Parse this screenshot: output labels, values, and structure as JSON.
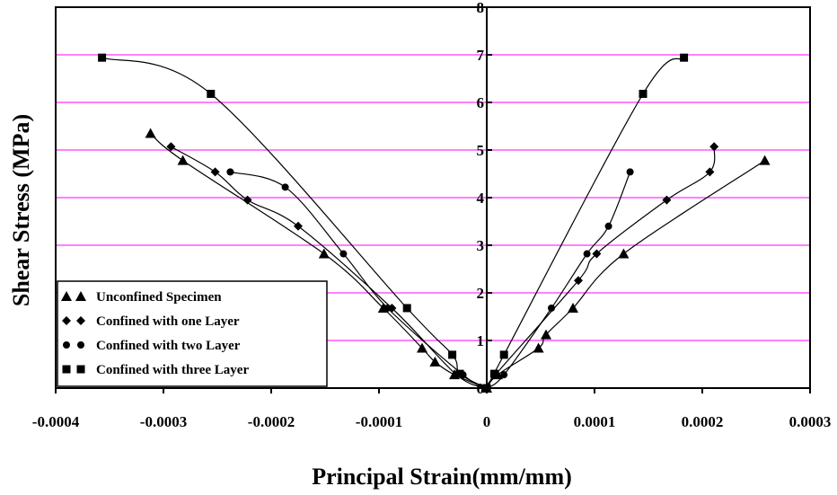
{
  "chart_data": {
    "type": "scatter",
    "title": "",
    "xlabel": "Principal Strain(mm/mm)",
    "ylabel": "Shear Stress (MPa)",
    "xlim": [
      -0.0004,
      0.0003
    ],
    "ylim": [
      0,
      8
    ],
    "x_ticks": [
      "-0.0004",
      "-0.0003",
      "-0.0002",
      "-0.0001",
      "0",
      "0.0001",
      "0.0002",
      "0.0003"
    ],
    "y_ticks": [
      "0",
      "1",
      "2",
      "3",
      "4",
      "5",
      "6",
      "7",
      "8"
    ],
    "grid": true,
    "legend_position": "bottom-left",
    "series": [
      {
        "name": "Unconfined Specimen",
        "marker": "triangle",
        "left": [
          [
            -0.000312,
            5.35
          ],
          [
            -0.000282,
            4.78
          ],
          [
            -0.000151,
            2.82
          ],
          [
            -9.6e-05,
            1.68
          ],
          [
            -6e-05,
            0.84
          ],
          [
            -4.8e-05,
            0.55
          ],
          [
            -3e-05,
            0.28
          ],
          [
            0,
            0
          ]
        ],
        "right": [
          [
            1e-05,
            0.28
          ],
          [
            4.8e-05,
            0.84
          ],
          [
            5.5e-05,
            1.12
          ],
          [
            8e-05,
            1.68
          ],
          [
            0.000127,
            2.82
          ],
          [
            0.000258,
            4.78
          ]
        ]
      },
      {
        "name": "Confined with one Layer",
        "marker": "diamond",
        "left": [
          [
            -0.000293,
            5.07
          ],
          [
            -0.000252,
            4.54
          ],
          [
            -0.000222,
            3.95
          ],
          [
            -0.000175,
            3.4
          ],
          [
            -8.8e-05,
            1.68
          ],
          [
            -2.8e-05,
            0.28
          ],
          [
            0,
            0
          ]
        ],
        "right": [
          [
            8e-06,
            0.28
          ],
          [
            8.5e-05,
            2.26
          ],
          [
            0.000102,
            2.82
          ],
          [
            0.000167,
            3.95
          ],
          [
            0.000207,
            4.54
          ],
          [
            0.000211,
            5.07
          ]
        ]
      },
      {
        "name": "Confined with two Layer",
        "marker": "circle",
        "left": [
          [
            -0.000238,
            4.54
          ],
          [
            -0.000187,
            4.22
          ],
          [
            -0.000133,
            2.82
          ],
          [
            -9.2e-05,
            1.68
          ],
          [
            -2.2e-05,
            0.28
          ],
          [
            0,
            0
          ]
        ],
        "right": [
          [
            1.6e-05,
            0.28
          ],
          [
            6e-05,
            1.68
          ],
          [
            9.3e-05,
            2.82
          ],
          [
            0.000113,
            3.4
          ],
          [
            0.000133,
            4.54
          ]
        ]
      },
      {
        "name": "Confined with three Layer",
        "marker": "square",
        "left": [
          [
            -0.000357,
            6.94
          ],
          [
            -0.000256,
            6.18
          ],
          [
            -7.4e-05,
            1.68
          ],
          [
            -3.2e-05,
            0.7
          ],
          [
            -2.5e-05,
            0.3
          ],
          [
            0,
            0
          ]
        ],
        "right": [
          [
            7e-06,
            0.3
          ],
          [
            1.6e-05,
            0.7
          ],
          [
            0.000145,
            6.18
          ],
          [
            0.000183,
            6.94
          ]
        ]
      }
    ]
  }
}
